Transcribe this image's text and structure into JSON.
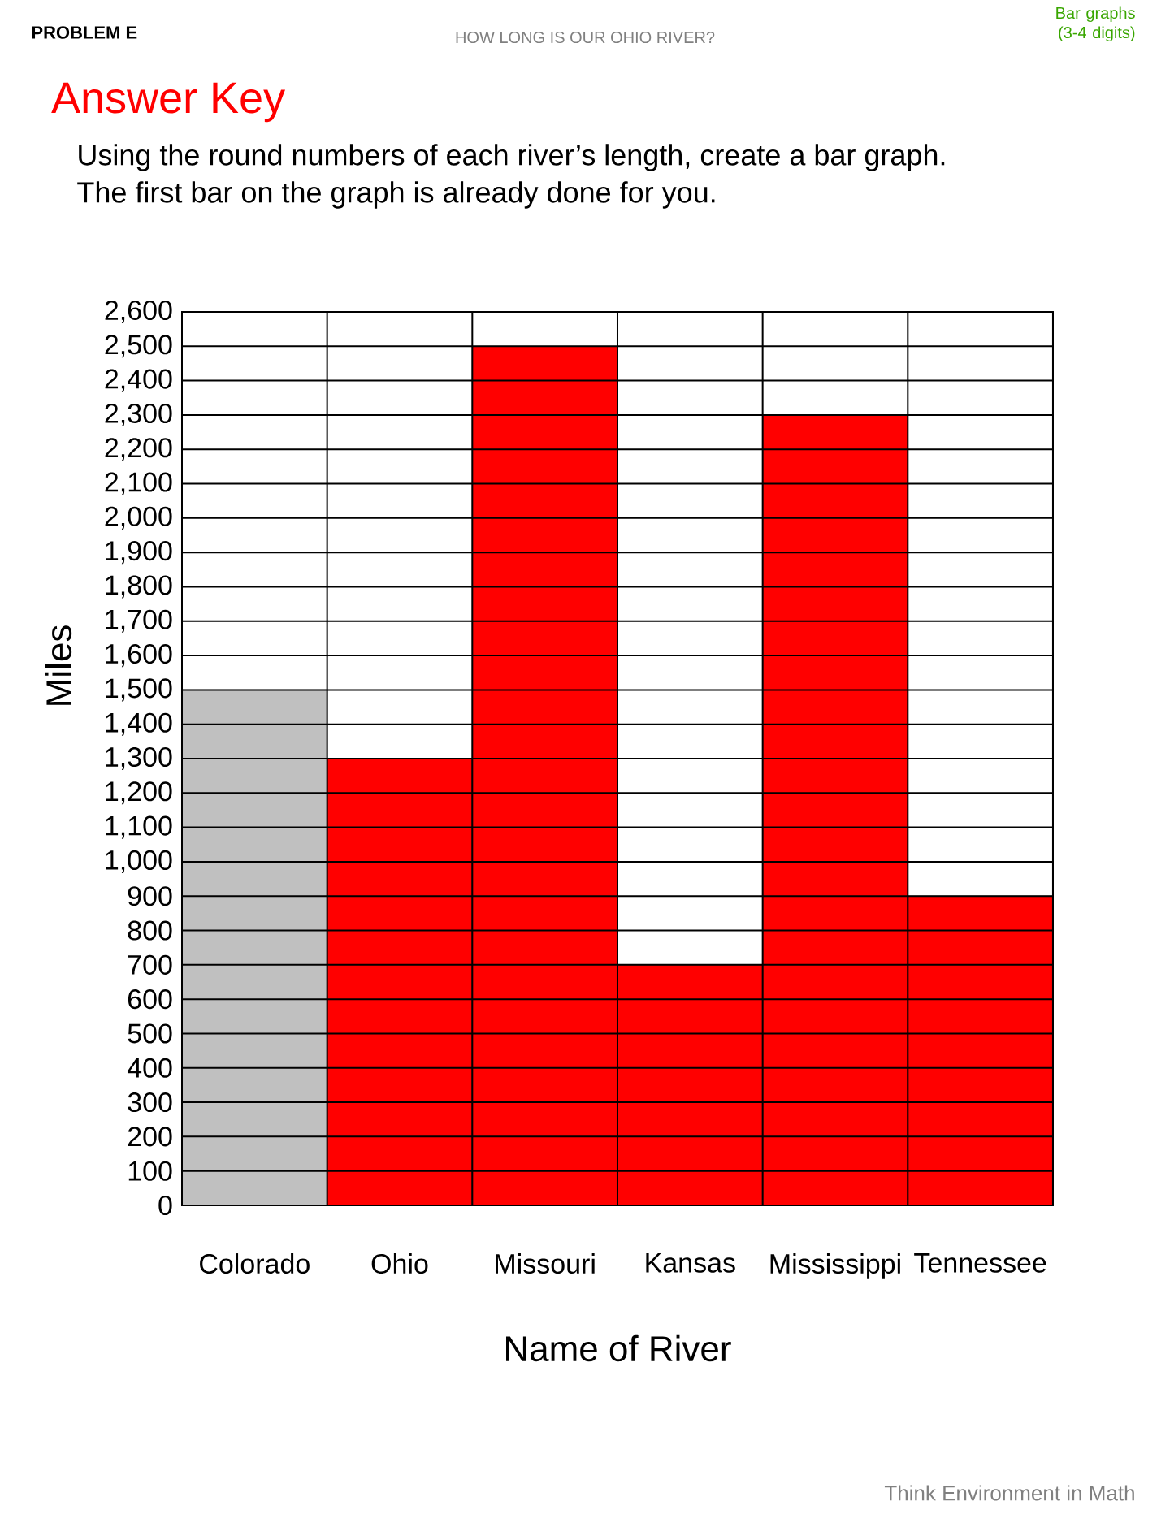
{
  "chart_data": {
    "type": "bar",
    "title": "HOW LONG IS OUR OHIO RIVER?",
    "subtitle": "Answer Key",
    "xlabel": "Name of River",
    "ylabel": "Miles",
    "categories": [
      "Colorado",
      "Ohio",
      "Missouri",
      "Kansas",
      "Mississippi",
      "Tennessee"
    ],
    "values": [
      1500,
      1300,
      2500,
      700,
      2300,
      900
    ],
    "colors": [
      "#c0c0c0",
      "#ff0000",
      "#ff0000",
      "#ff0000",
      "#ff0000",
      "#ff0000"
    ],
    "ylim": [
      0,
      2600
    ],
    "yticks": [
      0,
      100,
      200,
      300,
      400,
      500,
      600,
      700,
      800,
      900,
      {
        "value": 1000,
        "label": "1,000"
      },
      {
        "value": 1100,
        "label": "1,100"
      },
      {
        "value": 1200,
        "label": "1,200"
      },
      {
        "value": 1300,
        "label": "1,300"
      },
      {
        "value": 1400,
        "label": "1,400"
      },
      {
        "value": 1500,
        "label": "1,500"
      },
      {
        "value": 1600,
        "label": "1,600"
      },
      {
        "value": 1700,
        "label": "1,700"
      },
      {
        "value": 1800,
        "label": "1,800"
      },
      {
        "value": 1900,
        "label": "1,900"
      },
      {
        "value": 2000,
        "label": "2,000"
      },
      {
        "value": 2100,
        "label": "2,100"
      },
      {
        "value": 2200,
        "label": "2,200"
      },
      {
        "value": 2300,
        "label": "2,300"
      },
      {
        "value": 2400,
        "label": "2,400"
      },
      {
        "value": 2500,
        "label": "2,500"
      },
      {
        "value": 2600,
        "label": "2,600"
      }
    ],
    "grid": true,
    "annotations": [
      "PROBLEM E",
      "Bar graphs (3-4 digits)",
      "Using the round numbers of each river’s length, create a bar graph.",
      "The first bar on the graph is already done for you.",
      "Think Environment in Math"
    ]
  }
}
